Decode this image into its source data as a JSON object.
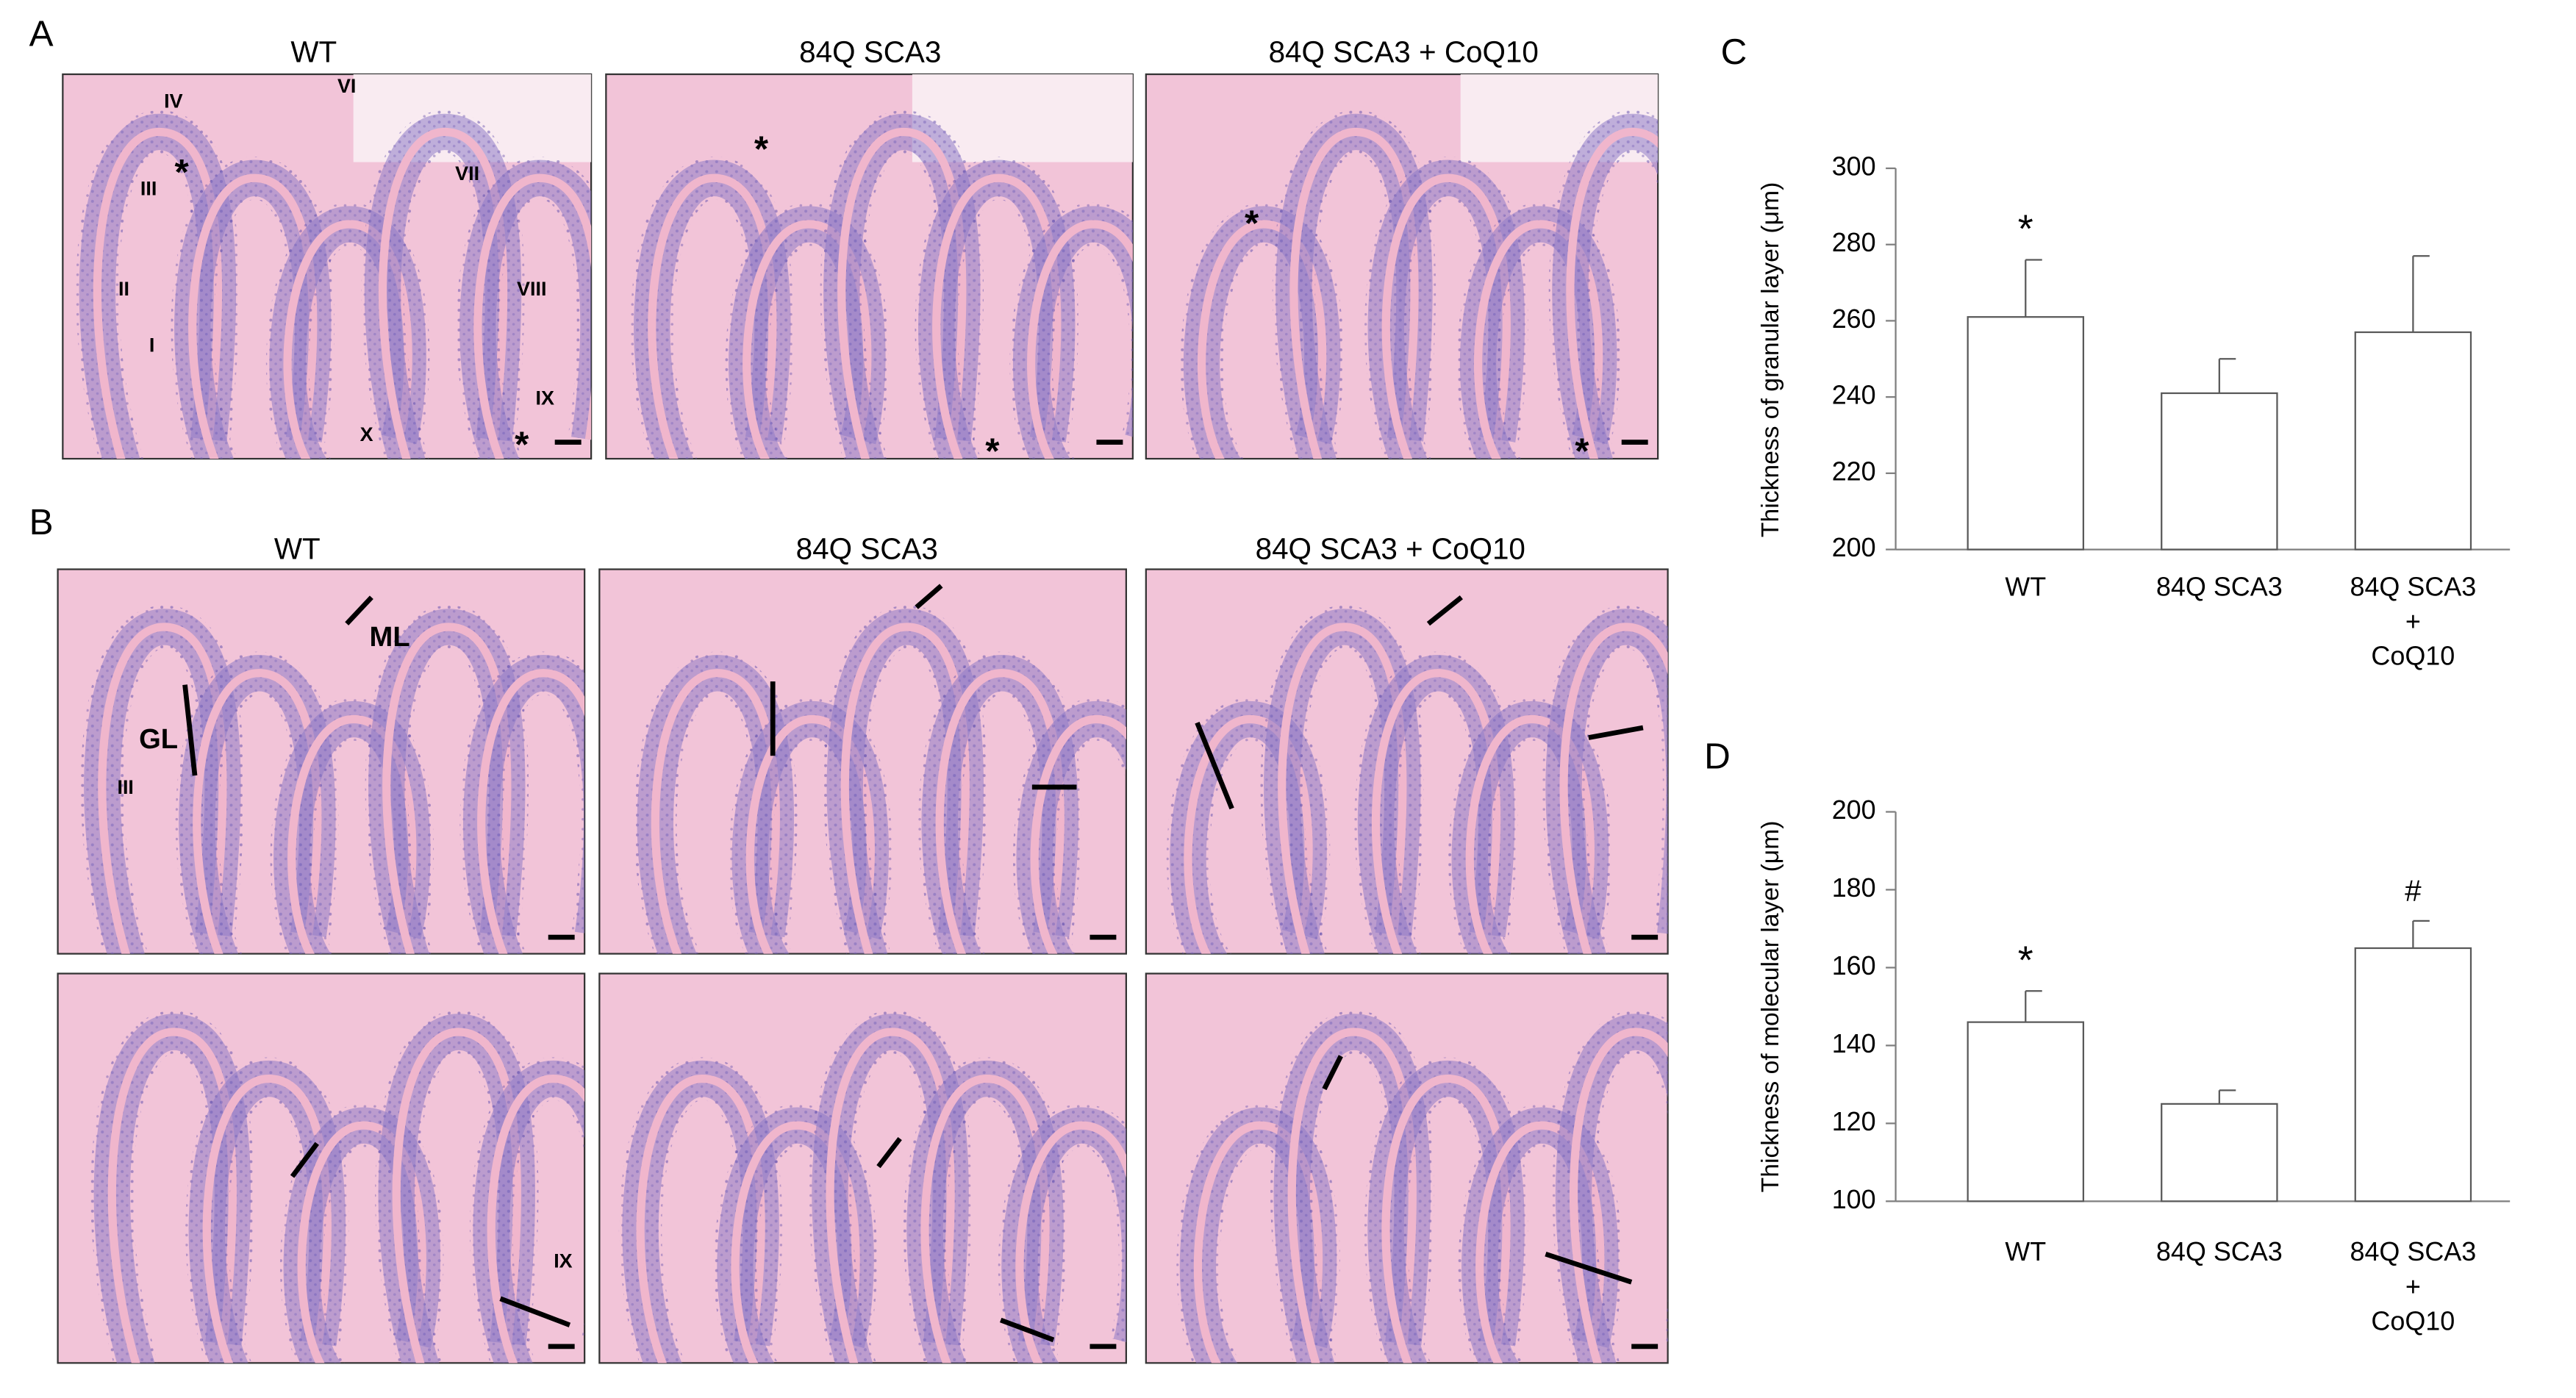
{
  "figure": {
    "panel_letters": [
      "A",
      "B",
      "C",
      "D"
    ],
    "a_titles": [
      "WT",
      "84Q SCA3",
      "84Q SCA3 + CoQ10"
    ],
    "b_titles": [
      "WT",
      "84Q SCA3",
      "84Q SCA3 + CoQ10"
    ],
    "a_images": [
      {
        "labels": [
          "IV",
          "VI",
          "*",
          "III",
          "VII",
          "II",
          "VIII",
          "I",
          "IX",
          "X",
          "*"
        ]
      },
      {
        "labels": [
          "*",
          "*"
        ]
      },
      {
        "labels": [
          "*",
          "*"
        ]
      }
    ],
    "b_images": [
      {
        "labels": [
          "ML",
          "GL",
          "III"
        ]
      },
      {},
      {},
      {
        "labels": [
          "IX"
        ]
      },
      {},
      {}
    ]
  },
  "chart_data": [
    {
      "type": "bar",
      "y_label": "Thickness of granular layer (μm)",
      "categories": [
        "WT",
        "84Q SCA3",
        "84Q SCA3\n+\nCoQ10"
      ],
      "values": [
        261,
        241,
        257
      ],
      "errors": [
        15,
        9,
        20
      ],
      "annotations": [
        "*",
        null,
        null
      ],
      "color": "#ffffff",
      "edge_color": "#595959",
      "ylim": [
        200,
        300
      ],
      "yticks": [
        200,
        220,
        240,
        260,
        280,
        300
      ]
    },
    {
      "type": "bar",
      "y_label": "Thickness of molecular layer (μm)",
      "categories": [
        "WT",
        "84Q SCA3",
        "84Q SCA3\n+\nCoQ10"
      ],
      "values": [
        146,
        125,
        165
      ],
      "errors": [
        8,
        3.5,
        7
      ],
      "annotations": [
        "*",
        null,
        "#"
      ],
      "color": "#ffffff",
      "edge_color": "#595959",
      "ylim": [
        100,
        200
      ],
      "yticks": [
        100,
        120,
        140,
        160,
        180,
        200
      ]
    }
  ]
}
